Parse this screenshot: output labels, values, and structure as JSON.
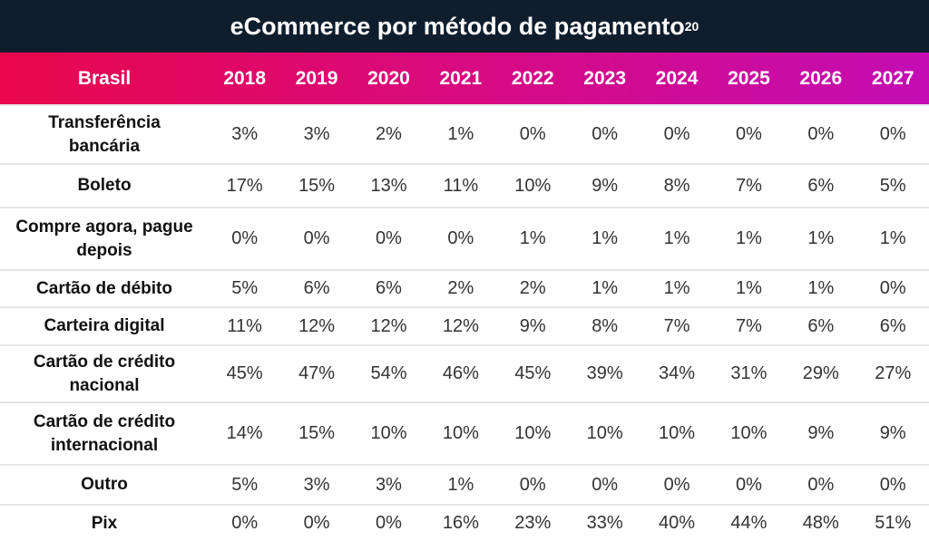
{
  "title": "eCommerce por método de pagamento",
  "title_sup": "20",
  "colors": {
    "title_bg": "#0f1e2d",
    "header_gradient_start": "#e8074b",
    "header_gradient_end": "#c30db3"
  },
  "chart_data": {
    "type": "table",
    "corner_header": "Brasil",
    "columns": [
      "2018",
      "2019",
      "2020",
      "2021",
      "2022",
      "2023",
      "2024",
      "2025",
      "2026",
      "2027"
    ],
    "rows": [
      {
        "label": "Transferência bancária",
        "values": [
          "3%",
          "3%",
          "2%",
          "1%",
          "0%",
          "0%",
          "0%",
          "0%",
          "0%",
          "0%"
        ]
      },
      {
        "label": "Boleto",
        "values": [
          "17%",
          "15%",
          "13%",
          "11%",
          "10%",
          "9%",
          "8%",
          "7%",
          "6%",
          "5%"
        ]
      },
      {
        "label": "Compre agora, pague depois",
        "values": [
          "0%",
          "0%",
          "0%",
          "0%",
          "1%",
          "1%",
          "1%",
          "1%",
          "1%",
          "1%"
        ]
      },
      {
        "label": "Cartão de débito",
        "values": [
          "5%",
          "6%",
          "6%",
          "2%",
          "2%",
          "1%",
          "1%",
          "1%",
          "1%",
          "0%"
        ]
      },
      {
        "label": "Carteira digital",
        "values": [
          "11%",
          "12%",
          "12%",
          "12%",
          "9%",
          "8%",
          "7%",
          "7%",
          "6%",
          "6%"
        ]
      },
      {
        "label": "Cartão de crédito nacional",
        "values": [
          "45%",
          "47%",
          "54%",
          "46%",
          "45%",
          "39%",
          "34%",
          "31%",
          "29%",
          "27%"
        ]
      },
      {
        "label": "Cartão de crédito internacional",
        "values": [
          "14%",
          "15%",
          "10%",
          "10%",
          "10%",
          "10%",
          "10%",
          "10%",
          "9%",
          "9%"
        ]
      },
      {
        "label": "Outro",
        "values": [
          "5%",
          "3%",
          "3%",
          "1%",
          "0%",
          "0%",
          "0%",
          "0%",
          "0%",
          "0%"
        ]
      },
      {
        "label": "Pix",
        "values": [
          "0%",
          "0%",
          "0%",
          "16%",
          "23%",
          "33%",
          "40%",
          "44%",
          "48%",
          "51%"
        ]
      }
    ]
  }
}
